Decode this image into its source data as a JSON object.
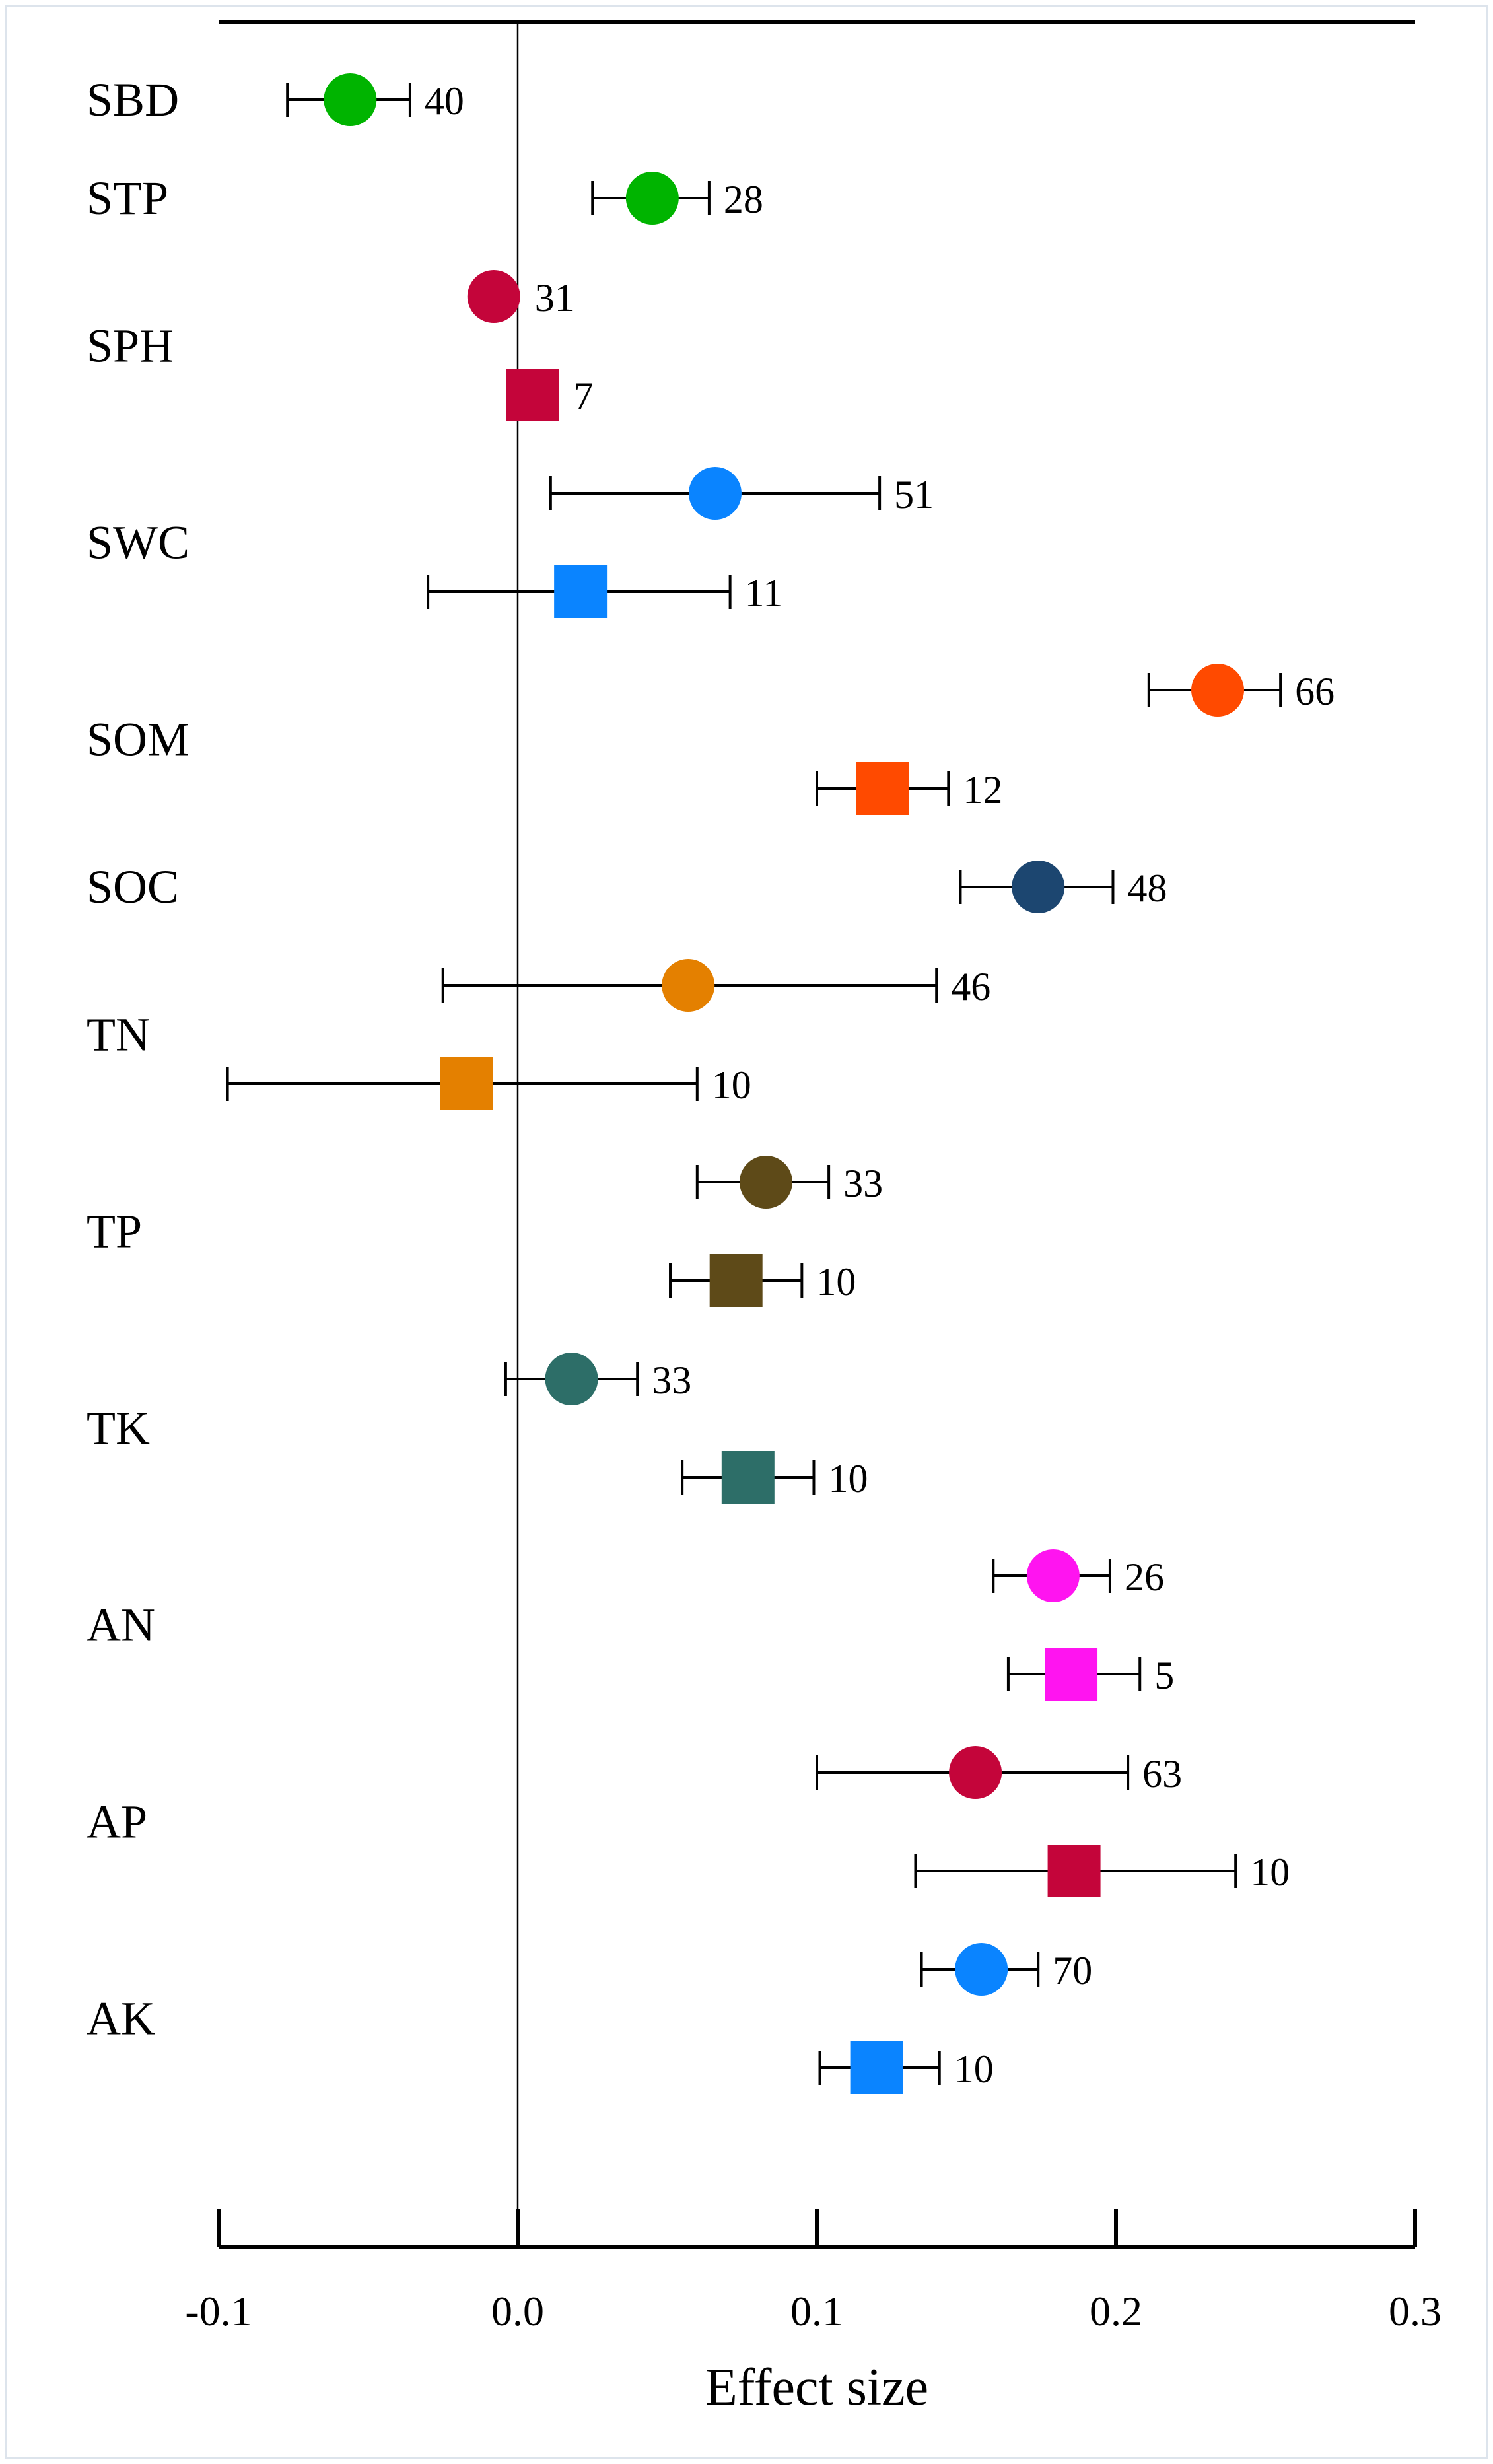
{
  "chart_data": {
    "type": "forest",
    "title": "",
    "xlabel": "Effect size",
    "ylabel": "",
    "xlim": [
      -0.1,
      0.3
    ],
    "x_ticks": [
      -0.1,
      0.0,
      0.1,
      0.2,
      0.3
    ],
    "x_tick_labels": [
      "-0.1",
      "0.0",
      "0.1",
      "0.2",
      "0.3"
    ],
    "reference_line": 0.0,
    "categories": [
      "SBD",
      "STP",
      "SPH",
      "SWC",
      "SOM",
      "SOC",
      "TN",
      "TP",
      "TK",
      "AN",
      "AP",
      "AK"
    ],
    "series": [
      {
        "name": "circle",
        "marker": "circle"
      },
      {
        "name": "square",
        "marker": "square"
      }
    ],
    "points": [
      {
        "category": "SBD",
        "marker": "circle",
        "value": -0.056,
        "lower": -0.077,
        "upper": -0.036,
        "n": "40",
        "color": "#00b400"
      },
      {
        "category": "STP",
        "marker": "circle",
        "value": 0.045,
        "lower": 0.025,
        "upper": 0.064,
        "n": "28",
        "color": "#00b400"
      },
      {
        "category": "SPH",
        "marker": "circle",
        "value": -0.008,
        "lower": null,
        "upper": null,
        "n": "31",
        "color": "#c4053a"
      },
      {
        "category": "SPH",
        "marker": "square",
        "value": 0.005,
        "lower": null,
        "upper": null,
        "n": "7",
        "color": "#c4053a"
      },
      {
        "category": "SWC",
        "marker": "circle",
        "value": 0.066,
        "lower": 0.011,
        "upper": 0.121,
        "n": "51",
        "color": "#0a84ff"
      },
      {
        "category": "SWC",
        "marker": "square",
        "value": 0.021,
        "lower": -0.03,
        "upper": 0.071,
        "n": "11",
        "color": "#0a84ff"
      },
      {
        "category": "SOM",
        "marker": "circle",
        "value": 0.234,
        "lower": 0.211,
        "upper": 0.255,
        "n": "66",
        "color": "#ff4a00"
      },
      {
        "category": "SOM",
        "marker": "square",
        "value": 0.122,
        "lower": 0.1,
        "upper": 0.144,
        "n": "12",
        "color": "#ff4a00"
      },
      {
        "category": "SOC",
        "marker": "circle",
        "value": 0.174,
        "lower": 0.148,
        "upper": 0.199,
        "n": "48",
        "color": "#1c4670"
      },
      {
        "category": "TN",
        "marker": "circle",
        "value": 0.057,
        "lower": -0.025,
        "upper": 0.14,
        "n": "46",
        "color": "#e48000"
      },
      {
        "category": "TN",
        "marker": "square",
        "value": -0.017,
        "lower": -0.097,
        "upper": 0.06,
        "n": "10",
        "color": "#e48000"
      },
      {
        "category": "TP",
        "marker": "circle",
        "value": 0.083,
        "lower": 0.06,
        "upper": 0.104,
        "n": "33",
        "color": "#5e4a18"
      },
      {
        "category": "TP",
        "marker": "square",
        "value": 0.073,
        "lower": 0.051,
        "upper": 0.095,
        "n": "10",
        "color": "#5e4a18"
      },
      {
        "category": "TK",
        "marker": "circle",
        "value": 0.018,
        "lower": -0.004,
        "upper": 0.04,
        "n": "33",
        "color": "#2d6e68"
      },
      {
        "category": "TK",
        "marker": "square",
        "value": 0.077,
        "lower": 0.055,
        "upper": 0.099,
        "n": "10",
        "color": "#2d6e68"
      },
      {
        "category": "AN",
        "marker": "circle",
        "value": 0.179,
        "lower": 0.159,
        "upper": 0.198,
        "n": "26",
        "color": "#ff14f0"
      },
      {
        "category": "AN",
        "marker": "square",
        "value": 0.185,
        "lower": 0.164,
        "upper": 0.208,
        "n": "5",
        "color": "#ff14f0"
      },
      {
        "category": "AP",
        "marker": "circle",
        "value": 0.153,
        "lower": 0.1,
        "upper": 0.204,
        "n": "63",
        "color": "#c4053a"
      },
      {
        "category": "AP",
        "marker": "square",
        "value": 0.186,
        "lower": 0.133,
        "upper": 0.24,
        "n": "10",
        "color": "#c4053a"
      },
      {
        "category": "AK",
        "marker": "circle",
        "value": 0.155,
        "lower": 0.135,
        "upper": 0.174,
        "n": "70",
        "color": "#0a84ff"
      },
      {
        "category": "AK",
        "marker": "square",
        "value": 0.12,
        "lower": 0.101,
        "upper": 0.141,
        "n": "10",
        "color": "#0a84ff"
      }
    ]
  }
}
